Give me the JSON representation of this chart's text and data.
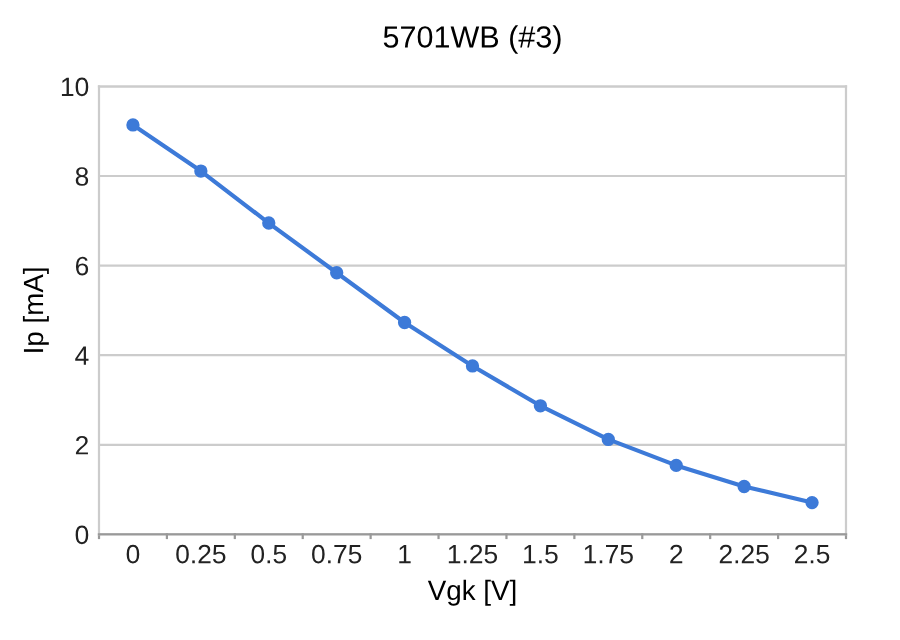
{
  "chart_data": {
    "type": "line",
    "title": "5701WB (#3)",
    "xlabel": "Vgk [V]",
    "ylabel": "Ip [mA]",
    "categories": [
      "0",
      "0.25",
      "0.5",
      "0.75",
      "1",
      "1.25",
      "1.5",
      "1.75",
      "2",
      "2.25",
      "2.5"
    ],
    "series": [
      {
        "color": "#3d7ad8",
        "values": [
          9.14,
          8.11,
          6.95,
          5.84,
          4.73,
          3.76,
          2.87,
          2.12,
          1.54,
          1.07,
          0.71
        ]
      }
    ],
    "ylim": [
      0,
      10
    ],
    "yticks": [
      0,
      2,
      4,
      6,
      8,
      10
    ],
    "grid": "y",
    "marker": "circle",
    "line_style": "solid"
  }
}
